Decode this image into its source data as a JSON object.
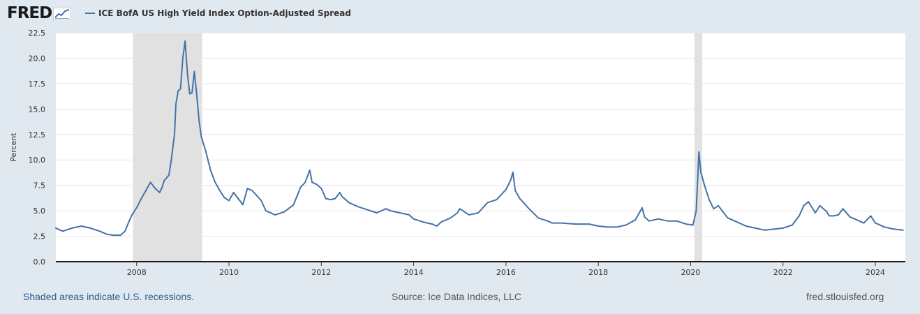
{
  "header": {
    "logo_text": "FRED",
    "logo_badge_icon": "line-chart-icon"
  },
  "legend": {
    "series_label": "ICE BofA US High Yield Index Option-Adjusted Spread",
    "color": "#4572a7"
  },
  "footer": {
    "recession_note": "Shaded areas indicate U.S. recessions.",
    "source": "Source: Ice Data Indices, LLC",
    "site": "fred.stlouisfed.org"
  },
  "colors": {
    "page_background": "#e1e9f0",
    "plot_background": "#ffffff",
    "recession_shading": "#e1e1e1",
    "line": "#4572a7",
    "grid": "#e6e6e6"
  },
  "chart_data": {
    "type": "line",
    "title": "",
    "xlabel": "",
    "ylabel": "Percent",
    "xlim": [
      2006.25,
      2024.65
    ],
    "ylim": [
      0,
      22.5
    ],
    "grid": true,
    "legend_position": "top-left",
    "x_ticks": [
      "2008",
      "2010",
      "2012",
      "2014",
      "2016",
      "2018",
      "2020",
      "2022",
      "2024"
    ],
    "x_tick_values": [
      2008,
      2010,
      2012,
      2014,
      2016,
      2018,
      2020,
      2022,
      2024
    ],
    "y_ticks": [
      "0.0",
      "2.5",
      "5.0",
      "7.5",
      "10.0",
      "12.5",
      "15.0",
      "17.5",
      "20.0",
      "22.5"
    ],
    "y_tick_values": [
      0,
      2.5,
      5,
      7.5,
      10,
      12.5,
      15,
      17.5,
      20,
      22.5
    ],
    "recessions": [
      {
        "start": 2007.92,
        "end": 2009.42
      },
      {
        "start": 2020.08,
        "end": 2020.25
      }
    ],
    "series": [
      {
        "name": "ICE BofA US High Yield Index Option-Adjusted Spread",
        "x": [
          2006.25,
          2006.4,
          2006.6,
          2006.8,
          2007.0,
          2007.2,
          2007.35,
          2007.5,
          2007.65,
          2007.75,
          2007.82,
          2007.9,
          2008.0,
          2008.1,
          2008.2,
          2008.3,
          2008.4,
          2008.5,
          2008.55,
          2008.6,
          2008.7,
          2008.75,
          2008.82,
          2008.85,
          2008.9,
          2008.95,
          2009.0,
          2009.05,
          2009.1,
          2009.15,
          2009.2,
          2009.25,
          2009.3,
          2009.35,
          2009.4,
          2009.5,
          2009.6,
          2009.7,
          2009.8,
          2009.9,
          2010.0,
          2010.1,
          2010.2,
          2010.3,
          2010.4,
          2010.5,
          2010.6,
          2010.7,
          2010.8,
          2011.0,
          2011.2,
          2011.4,
          2011.55,
          2011.65,
          2011.75,
          2011.8,
          2011.9,
          2012.0,
          2012.1,
          2012.2,
          2012.3,
          2012.4,
          2012.45,
          2012.6,
          2012.8,
          2013.0,
          2013.2,
          2013.4,
          2013.5,
          2013.7,
          2013.9,
          2014.0,
          2014.2,
          2014.4,
          2014.5,
          2014.6,
          2014.8,
          2014.95,
          2015.0,
          2015.2,
          2015.4,
          2015.6,
          2015.8,
          2016.0,
          2016.1,
          2016.15,
          2016.2,
          2016.3,
          2016.5,
          2016.7,
          2016.9,
          2017.0,
          2017.2,
          2017.5,
          2017.8,
          2018.0,
          2018.2,
          2018.4,
          2018.6,
          2018.8,
          2018.95,
          2019.0,
          2019.1,
          2019.3,
          2019.5,
          2019.7,
          2019.9,
          2020.05,
          2020.12,
          2020.18,
          2020.22,
          2020.3,
          2020.4,
          2020.5,
          2020.6,
          2020.8,
          2021.0,
          2021.2,
          2021.4,
          2021.6,
          2021.8,
          2022.0,
          2022.2,
          2022.35,
          2022.45,
          2022.55,
          2022.7,
          2022.8,
          2022.95,
          2023.0,
          2023.1,
          2023.2,
          2023.3,
          2023.45,
          2023.6,
          2023.75,
          2023.9,
          2024.0,
          2024.2,
          2024.4,
          2024.6
        ],
        "values": [
          3.3,
          3.0,
          3.3,
          3.5,
          3.3,
          3.0,
          2.7,
          2.6,
          2.6,
          3.0,
          3.8,
          4.6,
          5.3,
          6.2,
          7.0,
          7.8,
          7.2,
          6.8,
          7.3,
          8.0,
          8.5,
          10.0,
          12.5,
          15.5,
          16.8,
          17.0,
          20.0,
          21.7,
          18.5,
          16.5,
          16.6,
          18.7,
          16.5,
          14.0,
          12.3,
          10.8,
          9.0,
          7.8,
          7.0,
          6.3,
          6.0,
          6.8,
          6.2,
          5.6,
          7.2,
          7.0,
          6.5,
          6.0,
          5.0,
          4.6,
          4.9,
          5.6,
          7.3,
          7.8,
          9.0,
          7.8,
          7.6,
          7.2,
          6.2,
          6.1,
          6.2,
          6.8,
          6.4,
          5.8,
          5.4,
          5.1,
          4.8,
          5.2,
          5.0,
          4.8,
          4.6,
          4.2,
          3.9,
          3.7,
          3.5,
          3.9,
          4.3,
          4.8,
          5.2,
          4.6,
          4.8,
          5.8,
          6.1,
          7.1,
          8.0,
          8.8,
          7.0,
          6.2,
          5.2,
          4.3,
          4.0,
          3.8,
          3.8,
          3.7,
          3.7,
          3.5,
          3.4,
          3.4,
          3.6,
          4.1,
          5.3,
          4.4,
          4.0,
          4.2,
          4.0,
          4.0,
          3.7,
          3.6,
          5.0,
          10.8,
          8.8,
          7.5,
          6.1,
          5.2,
          5.5,
          4.3,
          3.9,
          3.5,
          3.3,
          3.1,
          3.2,
          3.3,
          3.6,
          4.5,
          5.5,
          5.9,
          4.8,
          5.5,
          4.9,
          4.5,
          4.5,
          4.6,
          5.2,
          4.4,
          4.1,
          3.8,
          4.5,
          3.8,
          3.4,
          3.2,
          3.1
        ]
      }
    ]
  }
}
